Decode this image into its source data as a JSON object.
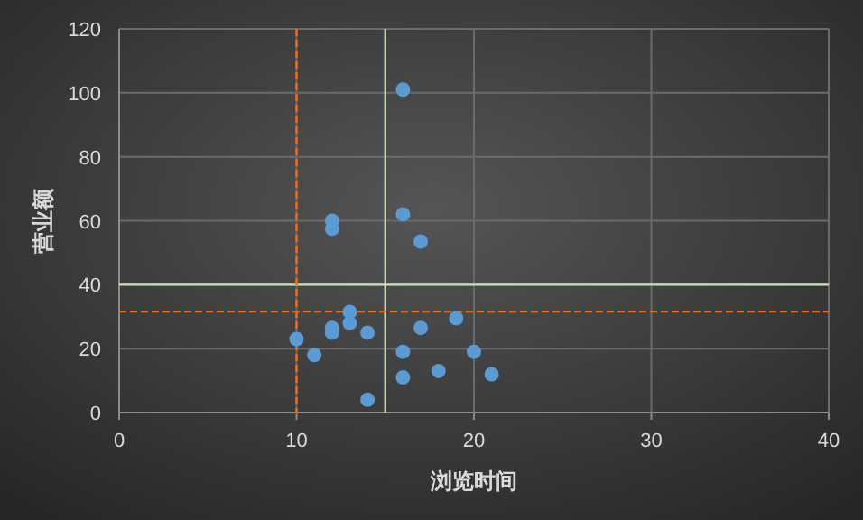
{
  "chart_data": {
    "type": "scatter",
    "xlabel": "浏览时间",
    "ylabel": "营业额",
    "xlim": [
      0,
      40
    ],
    "ylim": [
      0,
      120
    ],
    "xticks": [
      0,
      10,
      20,
      30,
      40
    ],
    "yticks": [
      0,
      20,
      40,
      60,
      80,
      100,
      120
    ],
    "grid": true,
    "marker": "circle",
    "series": [
      {
        "color": "#5b9bd5",
        "x": [
          16,
          12,
          12,
          16,
          17,
          13,
          13,
          12,
          12,
          14,
          10,
          11,
          17,
          19,
          16,
          20,
          18,
          21,
          16,
          14
        ],
        "values": [
          101,
          60,
          57.5,
          62,
          53.5,
          31.5,
          28,
          26.5,
          25,
          25,
          23,
          18,
          26.5,
          29.5,
          19,
          19,
          13,
          12,
          11,
          4
        ]
      }
    ],
    "ref_lines": [
      {
        "axis": "x",
        "value": 15,
        "color": "#c9e0b4",
        "line_style": "solid"
      },
      {
        "axis": "y",
        "value": 40,
        "color": "#c9e0b4",
        "line_style": "solid"
      },
      {
        "axis": "x",
        "value": 10,
        "color": "#ff6a00",
        "line_style": "dashed"
      },
      {
        "axis": "y",
        "value": 31.6,
        "color": "#ff6a00",
        "line_style": "dashed"
      }
    ]
  }
}
